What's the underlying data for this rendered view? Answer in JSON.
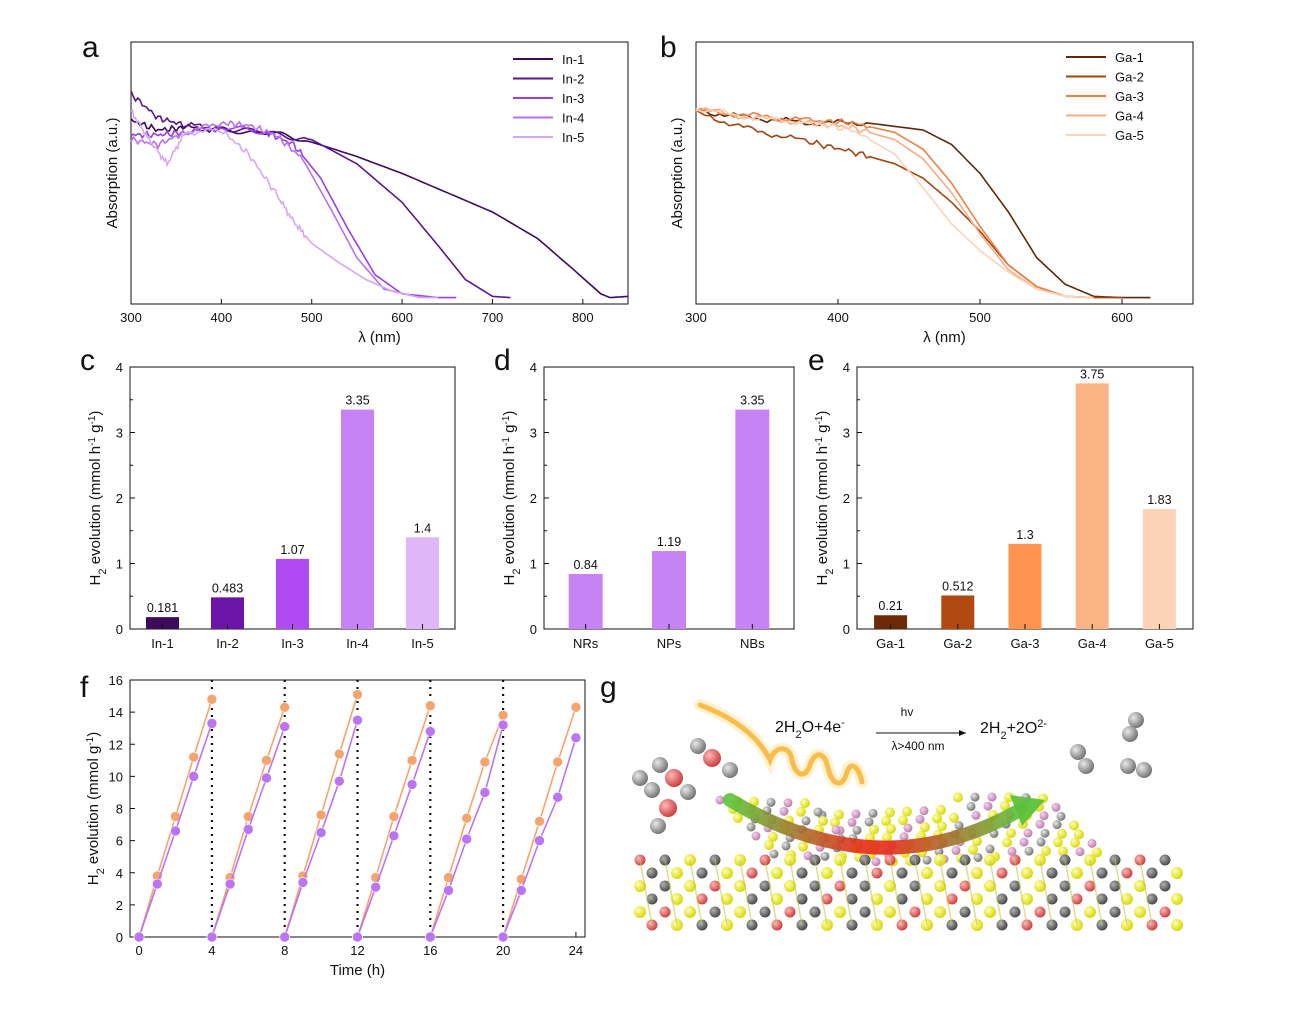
{
  "panels": {
    "a": {
      "letter": "a"
    },
    "b": {
      "letter": "b"
    },
    "c": {
      "letter": "c"
    },
    "d": {
      "letter": "d"
    },
    "e": {
      "letter": "e"
    },
    "f": {
      "letter": "f"
    },
    "g": {
      "letter": "g"
    }
  },
  "chart_data": [
    {
      "id": "a",
      "type": "line",
      "xlabel": "λ (nm)",
      "ylabel": "Absorption (a.u.)",
      "xlim": [
        300,
        850
      ],
      "xticks": [
        300,
        400,
        500,
        600,
        700,
        800
      ],
      "ylim": [
        0,
        1
      ],
      "legend_position": "top-right",
      "series": [
        {
          "name": "In-1",
          "color": "#3d0a5c",
          "x": [
            300,
            330,
            360,
            400,
            450,
            500,
            550,
            600,
            650,
            700,
            750,
            790,
            820,
            830,
            850
          ],
          "y": [
            0.74,
            0.7,
            0.71,
            0.7,
            0.69,
            0.65,
            0.59,
            0.52,
            0.44,
            0.36,
            0.25,
            0.12,
            0.02,
            0.005,
            0.01
          ]
        },
        {
          "name": "In-2",
          "color": "#5a1690",
          "x": [
            300,
            330,
            360,
            400,
            450,
            500,
            550,
            600,
            640,
            670,
            700,
            720
          ],
          "y": [
            0.85,
            0.75,
            0.72,
            0.71,
            0.69,
            0.66,
            0.56,
            0.4,
            0.22,
            0.08,
            0.01,
            0.005
          ]
        },
        {
          "name": "In-3",
          "color": "#9b40e6",
          "x": [
            300,
            330,
            360,
            400,
            450,
            480,
            510,
            540,
            570,
            600,
            640,
            660
          ],
          "y": [
            0.68,
            0.68,
            0.69,
            0.71,
            0.69,
            0.64,
            0.5,
            0.29,
            0.1,
            0.02,
            0.005,
            0.005
          ]
        },
        {
          "name": "In-4",
          "color": "#bb6ff0",
          "x": [
            300,
            330,
            360,
            400,
            430,
            460,
            490,
            520,
            550,
            580,
            620
          ],
          "y": [
            0.66,
            0.64,
            0.69,
            0.73,
            0.72,
            0.68,
            0.58,
            0.38,
            0.17,
            0.04,
            0.005
          ]
        },
        {
          "name": "In-5",
          "color": "#d6a7f5",
          "x": [
            300,
            320,
            340,
            360,
            400,
            430,
            460,
            480,
            500,
            530,
            560,
            590,
            620,
            640
          ],
          "y": [
            0.78,
            0.66,
            0.56,
            0.69,
            0.7,
            0.6,
            0.44,
            0.32,
            0.23,
            0.15,
            0.08,
            0.03,
            0.005,
            0.005
          ]
        }
      ]
    },
    {
      "id": "b",
      "type": "line",
      "xlabel": "λ (nm)",
      "ylabel": "Absorption (a.u.)",
      "xlim": [
        300,
        650
      ],
      "xticks": [
        300,
        400,
        500,
        600
      ],
      "ylim": [
        0,
        1
      ],
      "legend_position": "top-right",
      "series": [
        {
          "name": "Ga-1",
          "color": "#5b2a08",
          "x": [
            300,
            340,
            380,
            420,
            460,
            480,
            500,
            520,
            540,
            560,
            580,
            600,
            620
          ],
          "y": [
            0.78,
            0.75,
            0.73,
            0.73,
            0.7,
            0.64,
            0.52,
            0.36,
            0.17,
            0.06,
            0.01,
            0.005,
            0.005
          ]
        },
        {
          "name": "Ga-2",
          "color": "#a34610",
          "x": [
            300,
            340,
            380,
            410,
            440,
            460,
            480,
            500,
            520,
            540,
            560,
            580,
            600
          ],
          "y": [
            0.77,
            0.7,
            0.65,
            0.61,
            0.56,
            0.5,
            0.4,
            0.28,
            0.14,
            0.05,
            0.01,
            0.005,
            0.005
          ]
        },
        {
          "name": "Ga-3",
          "color": "#f07f45",
          "x": [
            300,
            340,
            380,
            410,
            440,
            460,
            480,
            500,
            520,
            540,
            560,
            580
          ],
          "y": [
            0.78,
            0.76,
            0.74,
            0.73,
            0.69,
            0.62,
            0.48,
            0.3,
            0.14,
            0.05,
            0.01,
            0.005
          ]
        },
        {
          "name": "Ga-4",
          "color": "#f6ad82",
          "x": [
            300,
            340,
            380,
            410,
            440,
            460,
            480,
            500,
            520,
            540,
            560,
            580
          ],
          "y": [
            0.79,
            0.75,
            0.73,
            0.71,
            0.66,
            0.58,
            0.44,
            0.27,
            0.12,
            0.04,
            0.01,
            0.005
          ]
        },
        {
          "name": "Ga-5",
          "color": "#fbd3b8",
          "x": [
            300,
            340,
            380,
            410,
            440,
            460,
            480,
            500,
            520,
            540,
            560,
            580
          ],
          "y": [
            0.79,
            0.75,
            0.73,
            0.7,
            0.6,
            0.46,
            0.31,
            0.2,
            0.11,
            0.04,
            0.01,
            0.005
          ]
        }
      ]
    },
    {
      "id": "c",
      "type": "bar",
      "ylabel": "H2 evolution (mmol h-1 g-1)",
      "ylim": [
        0,
        4
      ],
      "yticks": [
        0,
        1,
        2,
        3,
        4
      ],
      "categories": [
        "In-1",
        "In-2",
        "In-3",
        "In-4",
        "In-5"
      ],
      "values": [
        0.181,
        0.483,
        1.07,
        3.35,
        1.4
      ],
      "value_labels": [
        "0.181",
        "0.483",
        "1.07",
        "3.35",
        "1.4"
      ],
      "colors": [
        "#3d0a5c",
        "#6a14a8",
        "#b04af3",
        "#c783f4",
        "#dfb6f8"
      ]
    },
    {
      "id": "d",
      "type": "bar",
      "ylabel": "H2 evolution (mmol h-1 g-1)",
      "ylim": [
        0,
        4
      ],
      "yticks": [
        0,
        1,
        2,
        3,
        4
      ],
      "categories": [
        "NRs",
        "NPs",
        "NBs"
      ],
      "values": [
        0.84,
        1.19,
        3.35
      ],
      "value_labels": [
        "0.84",
        "1.19",
        "3.35"
      ],
      "colors": [
        "#c783f4",
        "#c783f4",
        "#c783f4"
      ]
    },
    {
      "id": "e",
      "type": "bar",
      "ylabel": "H2 evolution (mmol h-1 g-1)",
      "ylim": [
        0,
        4
      ],
      "yticks": [
        0,
        1,
        2,
        3,
        4
      ],
      "categories": [
        "Ga-1",
        "Ga-2",
        "Ga-3",
        "Ga-4",
        "Ga-5"
      ],
      "values": [
        0.21,
        0.512,
        1.3,
        3.75,
        1.83
      ],
      "value_labels": [
        "0.21",
        "0.512",
        "1.3",
        "3.75",
        "1.83"
      ],
      "colors": [
        "#6b2a08",
        "#b04a10",
        "#fd9450",
        "#fbb485",
        "#fdd3b8"
      ]
    },
    {
      "id": "f",
      "type": "scatter",
      "xlabel": "Time (h)",
      "ylabel": "H2 evolution (mmol g-1)",
      "xlim": [
        -0.5,
        24.5
      ],
      "xticks": [
        0,
        4,
        8,
        12,
        16,
        20,
        24
      ],
      "ylim": [
        0,
        16
      ],
      "yticks": [
        0,
        2,
        4,
        6,
        8,
        10,
        12,
        14,
        16
      ],
      "cycle_dividers": [
        4,
        8,
        12,
        16,
        20
      ],
      "series": [
        {
          "color": "#f6a46d",
          "x": [
            0,
            1,
            2,
            3,
            4,
            4,
            5,
            6,
            7,
            8,
            8,
            9,
            10,
            11,
            12,
            12,
            13,
            14,
            15,
            16,
            16,
            17,
            18,
            19,
            20,
            20,
            21,
            22,
            23,
            24
          ],
          "y": [
            0,
            3.8,
            7.5,
            11.2,
            14.8,
            0,
            3.7,
            7.5,
            11,
            14.3,
            0,
            3.8,
            7.6,
            11.4,
            15.1,
            0,
            3.7,
            7.5,
            11,
            14.4,
            0,
            3.7,
            7.4,
            10.9,
            13.8,
            0,
            3.6,
            7.2,
            10.9,
            14.3
          ]
        },
        {
          "color": "#bb74f2",
          "x": [
            0,
            1,
            2,
            3,
            4,
            4,
            5,
            6,
            7,
            8,
            8,
            9,
            10,
            11,
            12,
            12,
            13,
            14,
            15,
            16,
            16,
            17,
            18,
            19,
            20,
            20,
            21,
            22,
            23,
            24
          ],
          "y": [
            0,
            3.3,
            6.6,
            10,
            13.3,
            0,
            3.3,
            6.7,
            9.9,
            13.1,
            0,
            3.4,
            6.5,
            9.7,
            13.5,
            0,
            3.1,
            6.3,
            9.5,
            12.8,
            0,
            2.9,
            6.1,
            9,
            13.2,
            0,
            2.9,
            6,
            8.7,
            12.4
          ]
        }
      ]
    }
  ],
  "scheme": {
    "reactant": "2H2O+4e-",
    "condition_top": "hv",
    "condition_bottom": "λ>400 nm",
    "product": "2H2+2O2-"
  }
}
